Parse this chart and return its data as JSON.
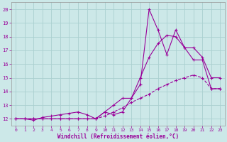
{
  "xlabel": "Windchill (Refroidissement éolien,°C)",
  "xlim": [
    -0.5,
    23.5
  ],
  "ylim": [
    11.5,
    20.5
  ],
  "xticks": [
    0,
    1,
    2,
    3,
    4,
    5,
    6,
    7,
    8,
    9,
    10,
    11,
    12,
    13,
    14,
    15,
    16,
    17,
    18,
    19,
    20,
    21,
    22,
    23
  ],
  "yticks": [
    12,
    13,
    14,
    15,
    16,
    17,
    18,
    19,
    20
  ],
  "bg_color": "#cce8e8",
  "grid_color": "#aad0d0",
  "line_color": "#990099",
  "line1_x": [
    0,
    1,
    2,
    3,
    4,
    5,
    6,
    7,
    8,
    9,
    10,
    11,
    12,
    13,
    14,
    15,
    16,
    17,
    18,
    19,
    20,
    21,
    22,
    23
  ],
  "line1_y": [
    12,
    12,
    12,
    12,
    12,
    12,
    12,
    12,
    12,
    12,
    12.2,
    12.5,
    12.8,
    13.2,
    13.5,
    13.8,
    14.2,
    14.5,
    14.8,
    15.0,
    15.2,
    15.0,
    14.2,
    14.2
  ],
  "line2_x": [
    0,
    1,
    2,
    3,
    4,
    5,
    6,
    7,
    8,
    9,
    10,
    11,
    12,
    13,
    14,
    15,
    16,
    17,
    18,
    19,
    20,
    21,
    22,
    23
  ],
  "line2_y": [
    12,
    12,
    12,
    12,
    12,
    12,
    12,
    12,
    12,
    12,
    12.5,
    13.0,
    13.5,
    13.5,
    15.0,
    16.5,
    17.5,
    18.1,
    18.0,
    17.2,
    17.2,
    16.5,
    15.0,
    15.0
  ],
  "line3_x": [
    0,
    1,
    2,
    3,
    4,
    5,
    6,
    7,
    8,
    9,
    10,
    11,
    12,
    13,
    14,
    15,
    16,
    17,
    18,
    19,
    20,
    21,
    22,
    23
  ],
  "line3_y": [
    12,
    12,
    11.9,
    12.1,
    12.2,
    12.3,
    12.4,
    12.5,
    12.3,
    12.0,
    12.5,
    12.3,
    12.5,
    13.5,
    14.5,
    20.0,
    18.5,
    16.7,
    18.5,
    17.2,
    16.3,
    16.3,
    14.2,
    14.2
  ],
  "figwidth": 3.2,
  "figheight": 2.0,
  "dpi": 100
}
